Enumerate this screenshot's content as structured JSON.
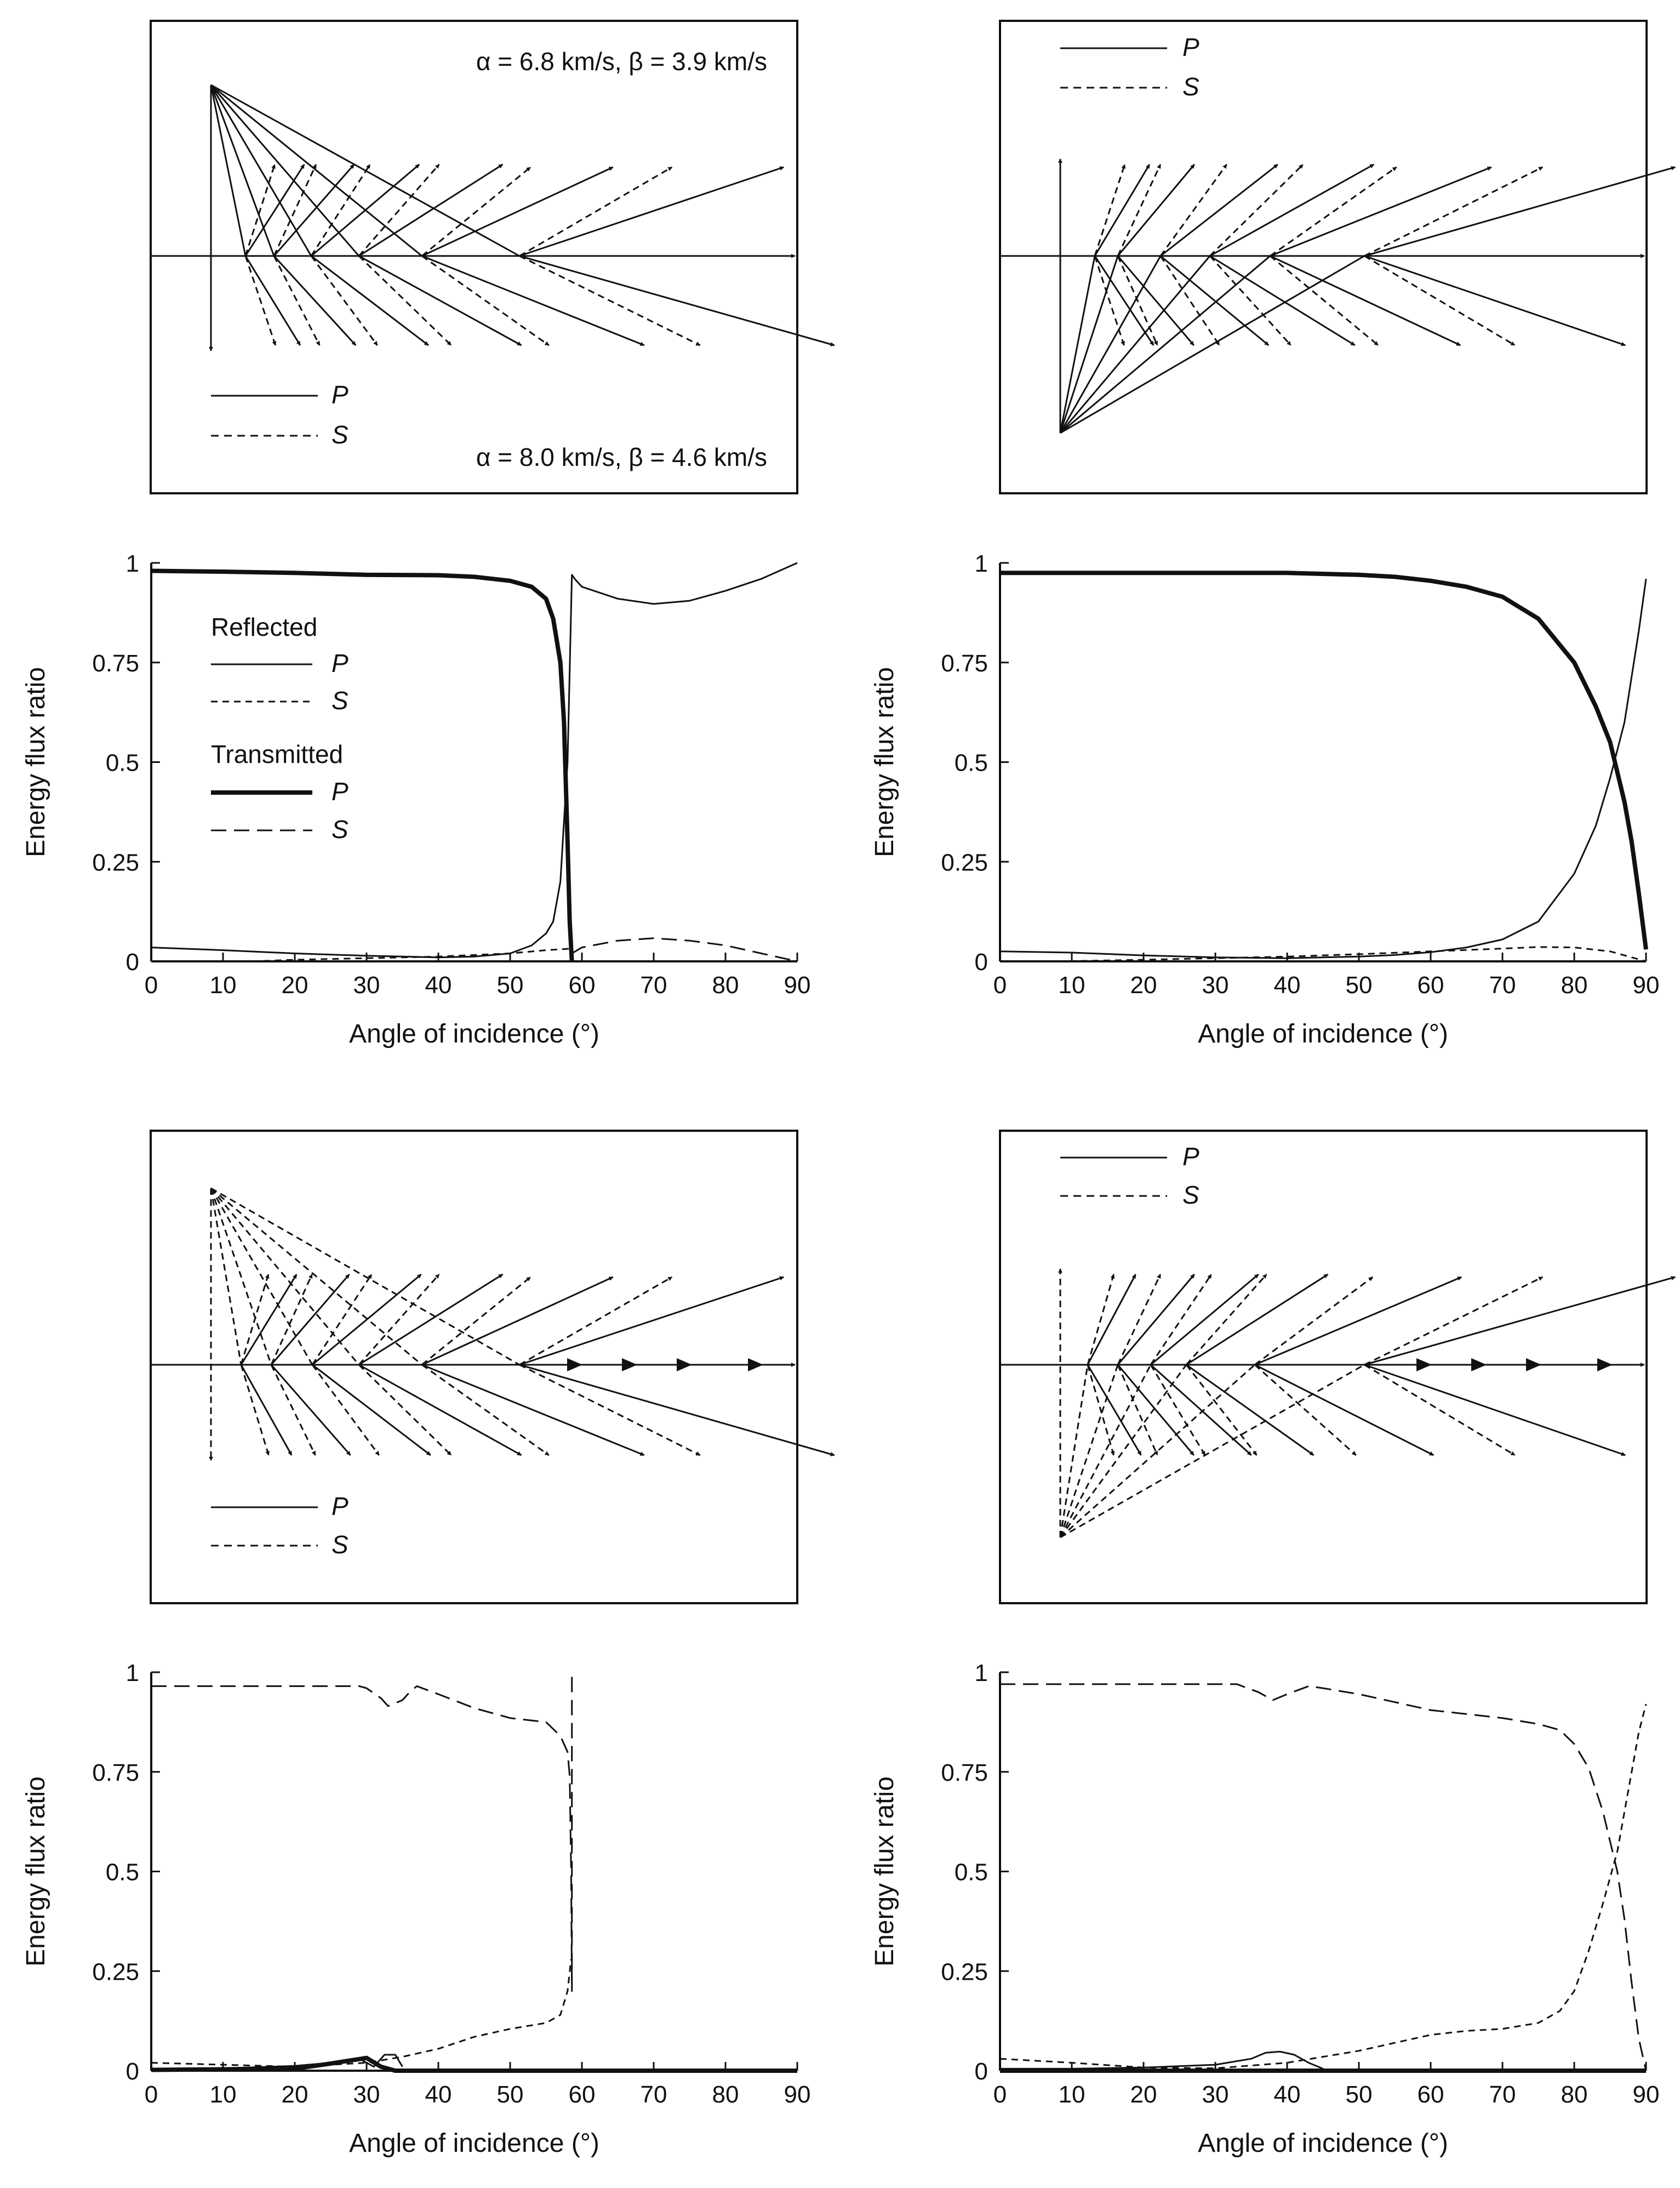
{
  "ray_diagrams": [
    {
      "id": "a",
      "upper_label": "α = 6.8 km/s, β = 3.9 km/s",
      "lower_label": "α = 8.0 km/s, β = 4.6 km/s",
      "legend": [
        {
          "label": "P",
          "style": "solid"
        },
        {
          "label": "S",
          "style": "dashed"
        }
      ],
      "incident_wave": "P",
      "source_side": "upper"
    },
    {
      "id": "b",
      "legend": [
        {
          "label": "P",
          "style": "solid"
        },
        {
          "label": "S",
          "style": "dashed"
        }
      ],
      "incident_wave": "P",
      "source_side": "lower"
    },
    {
      "id": "c",
      "legend": [
        {
          "label": "P",
          "style": "solid"
        },
        {
          "label": "S",
          "style": "dashed"
        }
      ],
      "incident_wave": "S",
      "source_side": "upper"
    },
    {
      "id": "d",
      "legend": [
        {
          "label": "P",
          "style": "solid"
        },
        {
          "label": "S",
          "style": "dashed"
        }
      ],
      "incident_wave": "S",
      "source_side": "lower"
    }
  ],
  "chart_data": [
    {
      "id": "a",
      "type": "line",
      "xlabel": "Angle of incidence (°)",
      "ylabel": "Energy flux ratio",
      "xlim": [
        0,
        90
      ],
      "ylim": [
        0,
        1
      ],
      "xticks": [
        "0",
        "10",
        "20",
        "30",
        "40",
        "50",
        "60",
        "70",
        "80",
        "90"
      ],
      "yticks": [
        "0",
        "0.25",
        "0.5",
        "0.75",
        "1"
      ],
      "legend": {
        "reflected_heading": "Reflected",
        "transmitted_heading": "Transmitted",
        "entries": [
          {
            "group": "Reflected",
            "label": "P"
          },
          {
            "group": "Reflected",
            "label": "S"
          },
          {
            "group": "Transmitted",
            "label": "P"
          },
          {
            "group": "Transmitted",
            "label": "S"
          }
        ]
      },
      "series": [
        {
          "name": "Transmitted P",
          "style": "thick",
          "x": [
            0,
            10,
            20,
            30,
            40,
            45,
            50,
            53,
            55,
            56,
            57,
            57.5,
            58,
            58.3,
            58.6
          ],
          "y": [
            0.98,
            0.978,
            0.975,
            0.97,
            0.969,
            0.965,
            0.955,
            0.94,
            0.91,
            0.86,
            0.75,
            0.6,
            0.3,
            0.1,
            0.0
          ]
        },
        {
          "name": "Reflected P",
          "style": "solid",
          "x": [
            0,
            10,
            20,
            30,
            40,
            45,
            50,
            53,
            55,
            56,
            57,
            58,
            58.6,
            59,
            60,
            65,
            70,
            75,
            80,
            85,
            90
          ],
          "y": [
            0.035,
            0.028,
            0.02,
            0.014,
            0.01,
            0.012,
            0.02,
            0.04,
            0.07,
            0.1,
            0.2,
            0.5,
            0.97,
            0.96,
            0.94,
            0.91,
            0.897,
            0.905,
            0.93,
            0.96,
            1.0
          ]
        },
        {
          "name": "Reflected S",
          "style": "dashed",
          "x": [
            14,
            20,
            30,
            40,
            50,
            55,
            58.5
          ],
          "y": [
            0.0,
            0.004,
            0.008,
            0.012,
            0.02,
            0.028,
            0.032
          ]
        },
        {
          "name": "Transmitted S",
          "style": "longdash",
          "x": [
            58.6,
            60,
            65,
            70,
            75,
            80,
            85,
            90
          ],
          "y": [
            0.02,
            0.035,
            0.052,
            0.058,
            0.052,
            0.04,
            0.02,
            0.0
          ]
        }
      ]
    },
    {
      "id": "b",
      "type": "line",
      "xlabel": "Angle of incidence (°)",
      "ylabel": "Energy flux ratio",
      "xlim": [
        0,
        90
      ],
      "ylim": [
        0,
        1
      ],
      "xticks": [
        "0",
        "10",
        "20",
        "30",
        "40",
        "50",
        "60",
        "70",
        "80",
        "90"
      ],
      "yticks": [
        "0",
        "0.25",
        "0.5",
        "0.75",
        "1"
      ],
      "series": [
        {
          "name": "Transmitted P",
          "style": "thick",
          "x": [
            0,
            10,
            20,
            30,
            40,
            50,
            55,
            60,
            65,
            70,
            75,
            80,
            83,
            85,
            87,
            88,
            89,
            90
          ],
          "y": [
            0.975,
            0.975,
            0.975,
            0.975,
            0.975,
            0.97,
            0.965,
            0.955,
            0.94,
            0.915,
            0.86,
            0.75,
            0.64,
            0.55,
            0.4,
            0.3,
            0.17,
            0.03
          ]
        },
        {
          "name": "Reflected P",
          "style": "solid",
          "x": [
            0,
            10,
            20,
            30,
            40,
            50,
            55,
            60,
            65,
            70,
            75,
            80,
            83,
            85,
            87,
            89,
            90
          ],
          "y": [
            0.025,
            0.022,
            0.015,
            0.01,
            0.008,
            0.012,
            0.016,
            0.023,
            0.035,
            0.055,
            0.1,
            0.22,
            0.34,
            0.46,
            0.6,
            0.83,
            0.96
          ]
        },
        {
          "name": "Reflected S",
          "style": "dashed",
          "x": [
            8,
            20,
            30,
            40,
            50,
            60,
            70,
            75,
            80,
            85,
            88,
            90
          ],
          "y": [
            0.0,
            0.004,
            0.008,
            0.012,
            0.018,
            0.025,
            0.032,
            0.036,
            0.035,
            0.025,
            0.01,
            0.0
          ]
        }
      ]
    },
    {
      "id": "c",
      "type": "line",
      "xlabel": "Angle of incidence (°)",
      "ylabel": "Energy flux ratio",
      "xlim": [
        0,
        90
      ],
      "ylim": [
        0,
        1
      ],
      "xticks": [
        "0",
        "10",
        "20",
        "30",
        "40",
        "50",
        "60",
        "70",
        "80",
        "90"
      ],
      "yticks": [
        "0",
        "0.25",
        "0.5",
        "0.75",
        "1"
      ],
      "series": [
        {
          "name": "Transmitted S",
          "style": "longdash",
          "x": [
            0,
            10,
            20,
            25,
            29,
            30,
            32,
            33,
            35,
            36,
            37,
            40,
            45,
            50,
            55,
            57,
            58,
            58.3,
            58.5,
            58.6,
            58.6
          ],
          "y": [
            0.965,
            0.965,
            0.965,
            0.965,
            0.965,
            0.96,
            0.935,
            0.915,
            0.93,
            0.95,
            0.965,
            0.945,
            0.91,
            0.885,
            0.875,
            0.84,
            0.8,
            0.74,
            0.5,
            0.2,
            1.0
          ]
        },
        {
          "name": "Reflected S",
          "style": "dashed",
          "x": [
            0,
            10,
            20,
            25,
            30,
            35,
            40,
            45,
            50,
            55,
            57,
            58,
            58.5
          ],
          "y": [
            0.02,
            0.015,
            0.01,
            0.015,
            0.02,
            0.035,
            0.055,
            0.085,
            0.105,
            0.12,
            0.14,
            0.2,
            0.28
          ]
        },
        {
          "name": "Reflected P",
          "style": "solid",
          "x": [
            0,
            10,
            20,
            25,
            29,
            31,
            32.5,
            34,
            35
          ],
          "y": [
            0.005,
            0.006,
            0.012,
            0.02,
            0.03,
            0.01,
            0.04,
            0.04,
            0.01
          ]
        },
        {
          "name": "Transmitted P",
          "style": "thick",
          "x": [
            0,
            20,
            25,
            30,
            32,
            34,
            35,
            90
          ],
          "y": [
            0.002,
            0.005,
            0.018,
            0.032,
            0.01,
            0.0,
            0.0,
            0.0
          ]
        }
      ]
    },
    {
      "id": "d",
      "type": "line",
      "xlabel": "Angle of incidence (°)",
      "ylabel": "Energy flux ratio",
      "xlim": [
        0,
        90
      ],
      "ylim": [
        0,
        1
      ],
      "xticks": [
        "0",
        "10",
        "20",
        "30",
        "40",
        "50",
        "60",
        "70",
        "80",
        "90"
      ],
      "yticks": [
        "0",
        "0.25",
        "0.5",
        "0.75",
        "1"
      ],
      "series": [
        {
          "name": "Transmitted S",
          "style": "longdash",
          "x": [
            0,
            10,
            20,
            30,
            33,
            36,
            38,
            40,
            43,
            45,
            50,
            55,
            60,
            65,
            70,
            75,
            78,
            80,
            82,
            84,
            86,
            87,
            88,
            89,
            90
          ],
          "y": [
            0.97,
            0.97,
            0.97,
            0.97,
            0.97,
            0.95,
            0.93,
            0.945,
            0.965,
            0.96,
            0.945,
            0.925,
            0.905,
            0.895,
            0.885,
            0.87,
            0.855,
            0.82,
            0.76,
            0.65,
            0.5,
            0.38,
            0.22,
            0.08,
            0.0
          ]
        },
        {
          "name": "Reflected S",
          "style": "dashed",
          "x": [
            0,
            10,
            20,
            30,
            40,
            50,
            60,
            65,
            70,
            75,
            78,
            80,
            82,
            84,
            86,
            87,
            88,
            89,
            90
          ],
          "y": [
            0.03,
            0.02,
            0.008,
            0.006,
            0.02,
            0.05,
            0.09,
            0.1,
            0.105,
            0.12,
            0.15,
            0.2,
            0.3,
            0.42,
            0.55,
            0.65,
            0.75,
            0.85,
            0.92
          ]
        },
        {
          "name": "Reflected P",
          "style": "solid",
          "x": [
            0,
            10,
            20,
            30,
            35,
            37,
            39,
            41,
            43,
            45
          ],
          "y": [
            0.005,
            0.005,
            0.008,
            0.015,
            0.03,
            0.045,
            0.048,
            0.04,
            0.02,
            0.005
          ]
        },
        {
          "name": "Transmitted P",
          "style": "thick",
          "x": [
            0,
            30,
            90
          ],
          "y": [
            0.0,
            0.0,
            0.0
          ]
        }
      ]
    }
  ]
}
